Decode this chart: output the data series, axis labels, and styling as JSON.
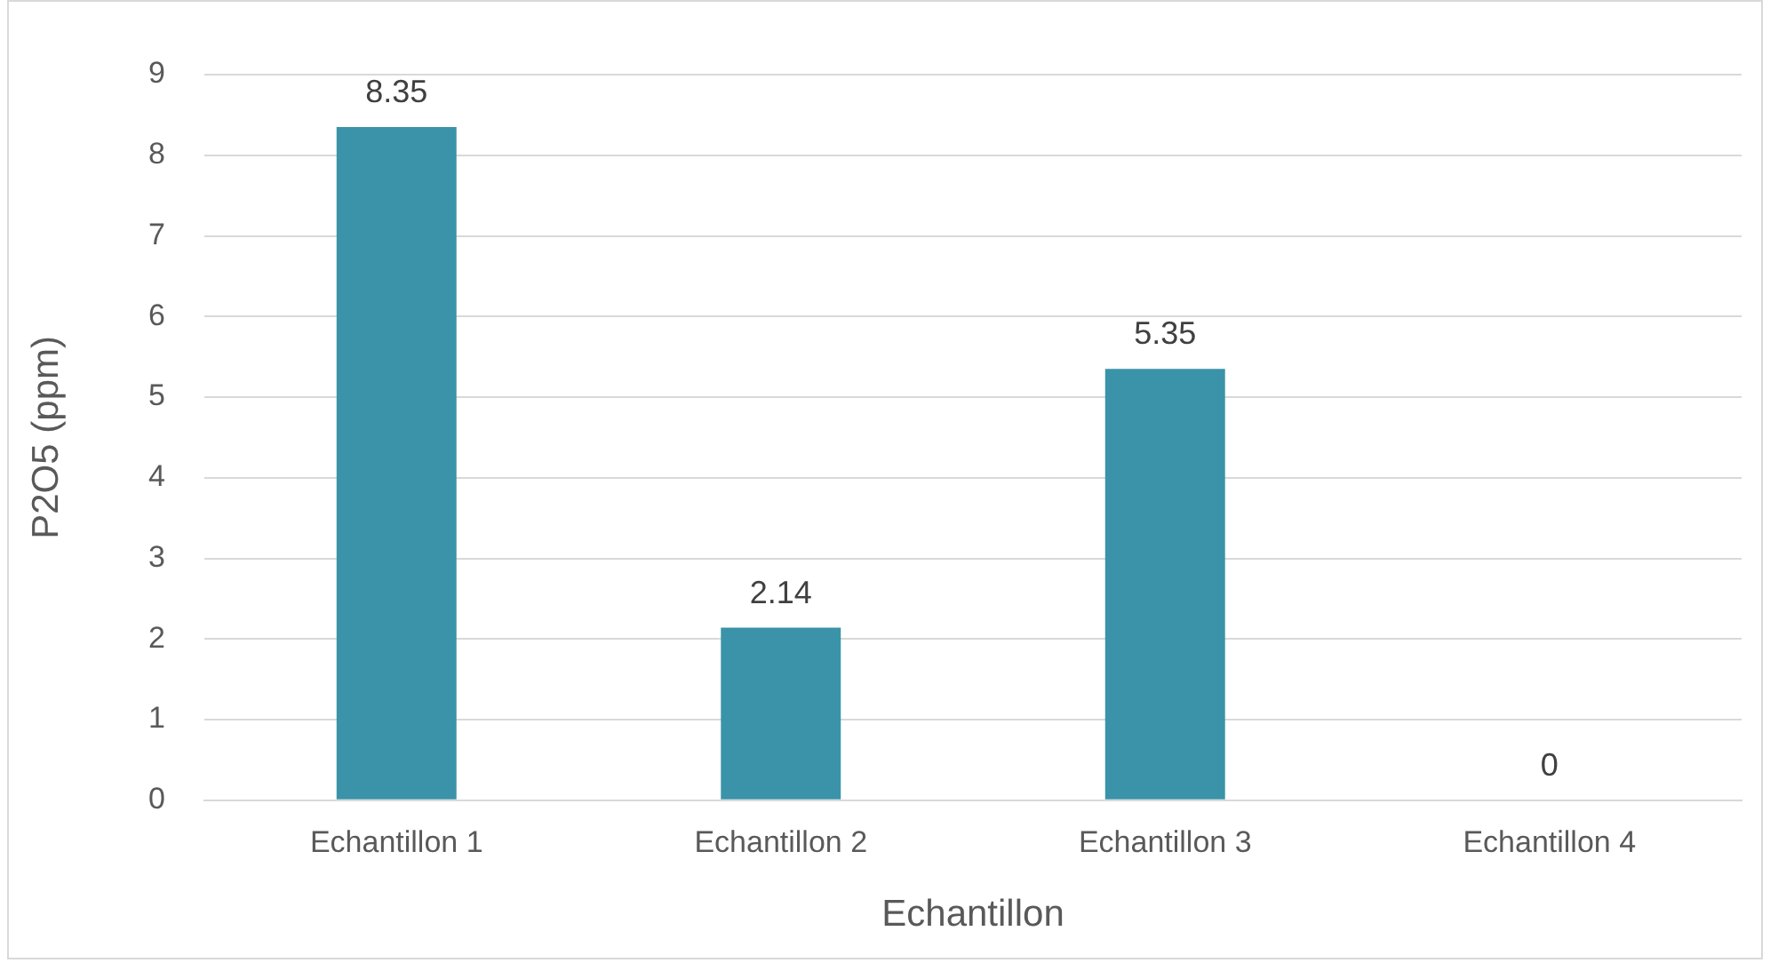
{
  "chart_data": {
    "type": "bar",
    "xlabel": "Echantillon",
    "ylabel": "P2O5 (ppm)",
    "categories": [
      "Echantillon 1",
      "Echantillon 2",
      "Echantillon 3",
      "Echantillon 4"
    ],
    "values": [
      8.35,
      2.14,
      5.35,
      0
    ],
    "color": "#3a93a8",
    "ylim": [
      0,
      9
    ],
    "yticks": [
      0,
      1,
      2,
      3,
      4,
      5,
      6,
      7,
      8,
      9
    ],
    "grid": "y",
    "data_labels": true,
    "legend": false
  }
}
